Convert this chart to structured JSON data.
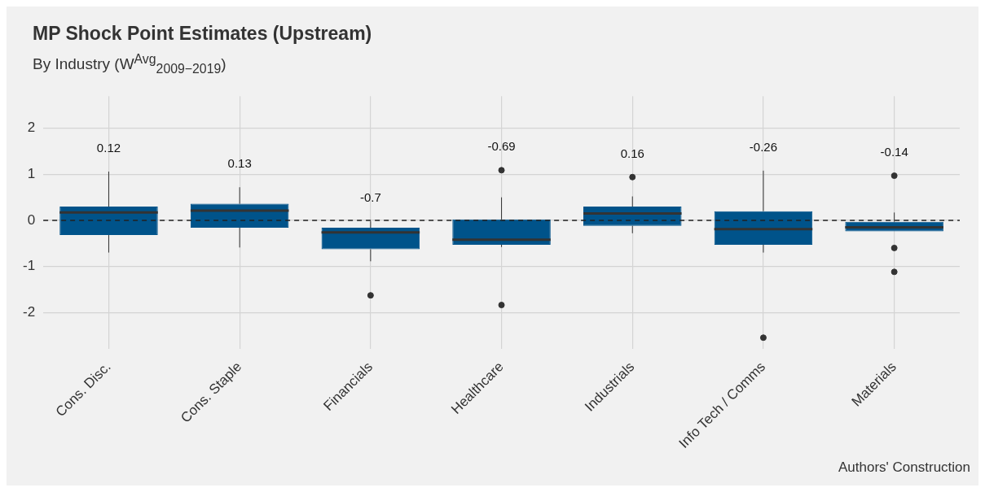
{
  "chart_data": {
    "type": "box",
    "title": "MP Shock Point Estimates (Upstream)",
    "subtitle": "By Industry (W$^{Avg}$$_{2009−2019}$)",
    "categories": [
      "Cons. Disc.",
      "Cons. Staple",
      "Financials",
      "Healthcare",
      "Industrials",
      "Info Tech / Comms",
      "Materials"
    ],
    "color": "#00538a",
    "boxes": [
      {
        "low": -0.7,
        "q1": -0.32,
        "median": 0.17,
        "q3": 0.3,
        "high": 1.06
      },
      {
        "low": -0.59,
        "q1": -0.16,
        "median": 0.21,
        "q3": 0.36,
        "high": 0.72
      },
      {
        "low": -0.89,
        "q1": -0.63,
        "median": -0.26,
        "q3": -0.16,
        "high": -0.02,
        "outliers": [
          -1.63
        ]
      },
      {
        "low": -0.58,
        "q1": -0.53,
        "median": -0.42,
        "q3": 0.02,
        "high": 0.5,
        "outliers": [
          1.09,
          -1.84
        ]
      },
      {
        "low": -0.28,
        "q1": -0.12,
        "median": 0.15,
        "q3": 0.3,
        "high": 0.52,
        "outliers": [
          0.94
        ]
      },
      {
        "low": -0.7,
        "q1": -0.53,
        "median": -0.19,
        "q3": 0.2,
        "high": 1.08,
        "outliers": [
          -2.55
        ]
      },
      {
        "low": -0.24,
        "q1": -0.24,
        "median": -0.15,
        "q3": -0.03,
        "high": 0.17,
        "outliers": [
          0.97,
          -0.6,
          -1.12
        ]
      }
    ],
    "ylim": [
      -2.8,
      2.7
    ],
    "yticks": [
      -2,
      -1,
      0,
      1,
      2
    ],
    "grid": true,
    "ref_lines": [
      {
        "axis": "y",
        "value": 0,
        "line_style": "dashed",
        "color": "#222222"
      }
    ],
    "annotations": [
      "0.12",
      "0.13",
      "-0.7",
      "-0.69",
      "0.16",
      "-0.26",
      "-0.14",
      "Authors' Construction"
    ]
  }
}
